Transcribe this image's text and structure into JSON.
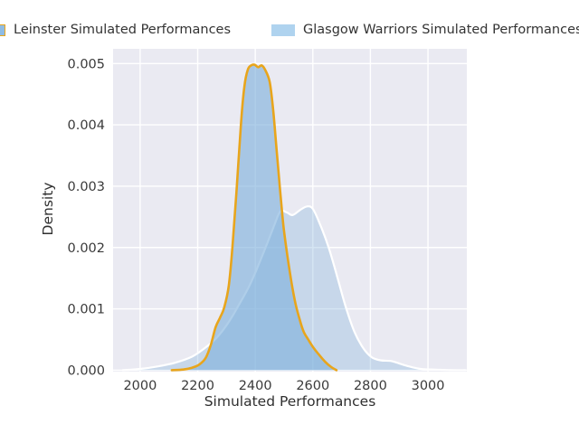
{
  "legend": {
    "items": [
      {
        "label": "Leinster Simulated Performances",
        "swatch_fill": "#8FBCE4",
        "swatch_border": "#E8A51C"
      },
      {
        "label": "Glasgow Warriors Simulated Performances",
        "swatch_fill": "#AFD3EF",
        "swatch_border": "none"
      }
    ]
  },
  "chart_data": {
    "type": "area",
    "subtype": "kde-density",
    "title": "",
    "xlabel": "Simulated Performances",
    "ylabel": "Density",
    "xlim": [
      1906,
      3135
    ],
    "ylim": [
      0,
      0.00524
    ],
    "xticks": [
      2000,
      2200,
      2400,
      2600,
      2800,
      3000
    ],
    "yticks": [
      0,
      0.001,
      0.002,
      0.003,
      0.004,
      0.005
    ],
    "ytick_labels": [
      "0.000",
      "0.001",
      "0.002",
      "0.003",
      "0.004",
      "0.005"
    ],
    "grid": true,
    "legend_position": "top",
    "panel_bg": "#EAEAF2",
    "grid_color": "#FFFFFF",
    "tick_label_color": "#3A3A3A",
    "series": [
      {
        "name": "Glasgow Warriors Simulated Performances",
        "line_color": "#FFFFFF",
        "line_width": 2.2,
        "fill_color": "#7EB0DC",
        "fill_opacity": 0.33,
        "points": [
          [
            1940,
            0
          ],
          [
            2000,
            2e-05
          ],
          [
            2060,
            6e-05
          ],
          [
            2120,
            0.00012
          ],
          [
            2180,
            0.00022
          ],
          [
            2230,
            0.00038
          ],
          [
            2270,
            0.00055
          ],
          [
            2310,
            0.0008
          ],
          [
            2345,
            0.00108
          ],
          [
            2380,
            0.00138
          ],
          [
            2410,
            0.0017
          ],
          [
            2440,
            0.00205
          ],
          [
            2465,
            0.00235
          ],
          [
            2487,
            0.00259
          ],
          [
            2510,
            0.00257
          ],
          [
            2530,
            0.00253
          ],
          [
            2555,
            0.00261
          ],
          [
            2580,
            0.00267
          ],
          [
            2600,
            0.00263
          ],
          [
            2625,
            0.00238
          ],
          [
            2655,
            0.002
          ],
          [
            2685,
            0.00152
          ],
          [
            2715,
            0.00102
          ],
          [
            2745,
            0.00062
          ],
          [
            2775,
            0.00036
          ],
          [
            2805,
            0.00021
          ],
          [
            2835,
            0.00016
          ],
          [
            2870,
            0.00015
          ],
          [
            2900,
            0.00011
          ],
          [
            2935,
            6e-05
          ],
          [
            2975,
            2e-05
          ],
          [
            3020,
            1e-05
          ],
          [
            3080,
            0
          ],
          [
            3130,
            0
          ]
        ]
      },
      {
        "name": "Leinster Simulated Performances",
        "line_color": "#E8A51C",
        "line_width": 2.6,
        "fill_color": "#7EB0DC",
        "fill_opacity": 0.62,
        "points": [
          [
            2110,
            0
          ],
          [
            2150,
            1e-05
          ],
          [
            2180,
            4e-05
          ],
          [
            2205,
            9e-05
          ],
          [
            2228,
            0.0002
          ],
          [
            2246,
            0.00042
          ],
          [
            2262,
            0.0007
          ],
          [
            2278,
            0.00086
          ],
          [
            2292,
            0.00102
          ],
          [
            2308,
            0.00138
          ],
          [
            2322,
            0.00208
          ],
          [
            2336,
            0.003
          ],
          [
            2350,
            0.004
          ],
          [
            2362,
            0.00462
          ],
          [
            2374,
            0.0049
          ],
          [
            2386,
            0.00497
          ],
          [
            2398,
            0.00498
          ],
          [
            2410,
            0.00494
          ],
          [
            2422,
            0.00497
          ],
          [
            2434,
            0.0049
          ],
          [
            2450,
            0.0047
          ],
          [
            2462,
            0.00425
          ],
          [
            2474,
            0.0036
          ],
          [
            2486,
            0.00295
          ],
          [
            2498,
            0.00235
          ],
          [
            2512,
            0.00185
          ],
          [
            2526,
            0.00143
          ],
          [
            2540,
            0.00108
          ],
          [
            2554,
            0.00083
          ],
          [
            2568,
            0.00063
          ],
          [
            2584,
            0.0005
          ],
          [
            2600,
            0.00038
          ],
          [
            2620,
            0.00026
          ],
          [
            2642,
            0.00014
          ],
          [
            2664,
            5e-05
          ],
          [
            2682,
            0
          ]
        ]
      }
    ]
  }
}
